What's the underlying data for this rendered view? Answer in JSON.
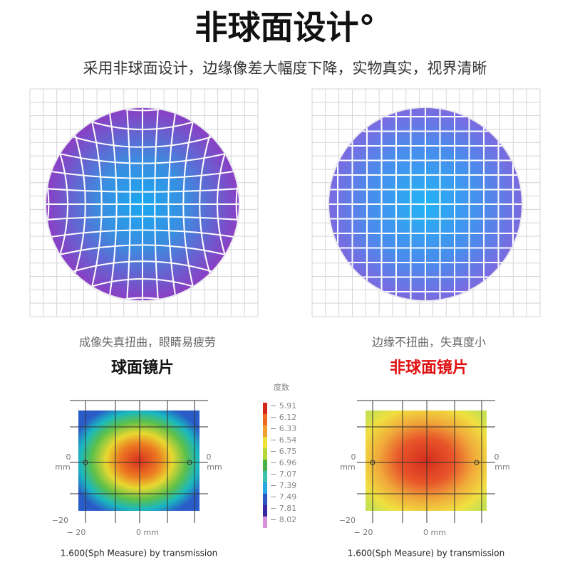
{
  "title": "非球面设计°",
  "subtitle": "采用非球面设计，边缘像差大幅度下降，实物真实，视界清晰",
  "panels": [
    {
      "caption": "成像失真扭曲，眼睛易疲劳",
      "label": "球面镜片",
      "map": {
        "y_top": "0",
        "y_unit": "mm",
        "y_right": "0",
        "y_right_unit": "mm",
        "y_bottom": "−20",
        "x_left": "− 20",
        "x_center": "0 mm",
        "note": "1.600(Sph Measure) by transmission"
      }
    },
    {
      "caption": "边缘不扭曲，失真度小",
      "label": "非球面镜片",
      "map": {
        "y_top": "0",
        "y_unit": "mm",
        "y_right": "0",
        "y_right_unit": "mm",
        "y_bottom": "−20",
        "x_left": "− 20",
        "x_center": "0 mm",
        "note": "1.600(Sph Measure) by transmission"
      }
    }
  ],
  "legend": {
    "title": "度数",
    "items": [
      "− 5.91",
      "− 6.12",
      "− 6.33",
      "− 6.54",
      "− 6.75",
      "− 6.96",
      "− 7.07",
      "− 7.39",
      "− 7.49",
      "− 7.81",
      "− 8.02"
    ]
  }
}
